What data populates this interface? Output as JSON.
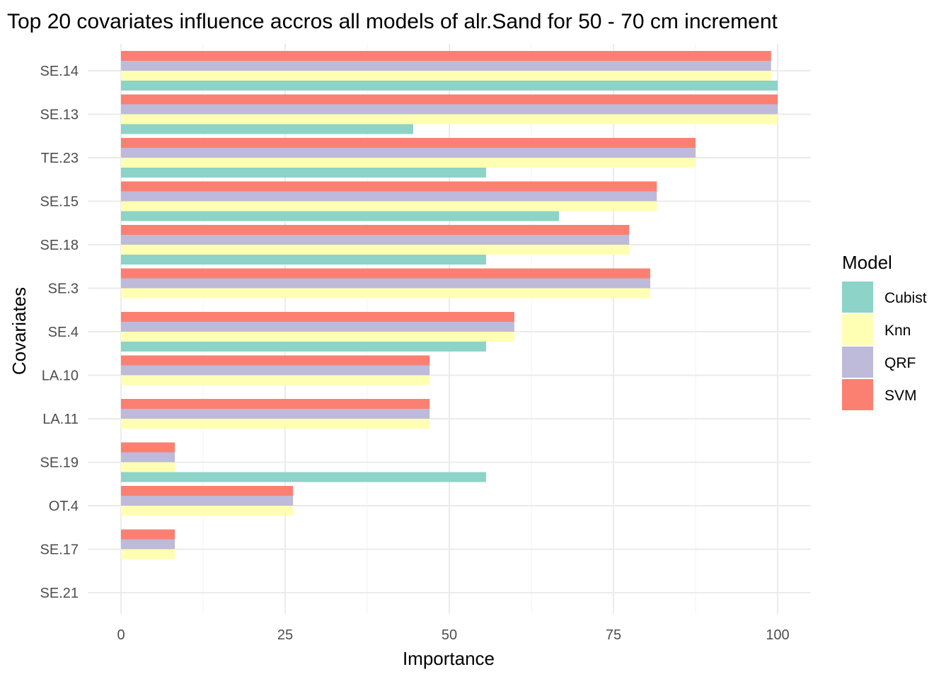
{
  "chart_data": {
    "type": "bar",
    "orientation": "horizontal",
    "title": "Top 20 covariates influence accros all models of alr.Sand for 50 - 70 cm increment",
    "xlabel": "Importance",
    "ylabel": "Covariates",
    "xlim": [
      0,
      100
    ],
    "xticks": [
      "0",
      "25",
      "50",
      "75",
      "100"
    ],
    "grid": true,
    "legend": {
      "title": "Model",
      "position": "right"
    },
    "categories": [
      "SE.14",
      "SE.13",
      "TE.23",
      "SE.15",
      "SE.18",
      "SE.3",
      "SE.4",
      "LA.10",
      "LA.11",
      "SE.19",
      "OT.4",
      "SE.17",
      "SE.21"
    ],
    "series": [
      {
        "name": "Cubist",
        "color": "#8dd3c7",
        "values": [
          100,
          44.5,
          55.6,
          66.7,
          55.6,
          null,
          55.6,
          null,
          null,
          55.6,
          null,
          null,
          null
        ]
      },
      {
        "name": "Knn",
        "color": "#ffffb3",
        "values": [
          99,
          100,
          87.5,
          81.6,
          77.4,
          80.6,
          59.9,
          47,
          47,
          8.2,
          26.2,
          8.2,
          null
        ]
      },
      {
        "name": "QRF",
        "color": "#bebada",
        "values": [
          99,
          100,
          87.5,
          81.6,
          77.4,
          80.6,
          59.9,
          47,
          47,
          8.2,
          26.2,
          8.2,
          null
        ]
      },
      {
        "name": "SVM",
        "color": "#fb8072",
        "values": [
          99,
          100,
          87.5,
          81.6,
          77.4,
          80.6,
          59.9,
          47,
          47,
          8.2,
          26.2,
          8.2,
          null
        ]
      }
    ]
  }
}
